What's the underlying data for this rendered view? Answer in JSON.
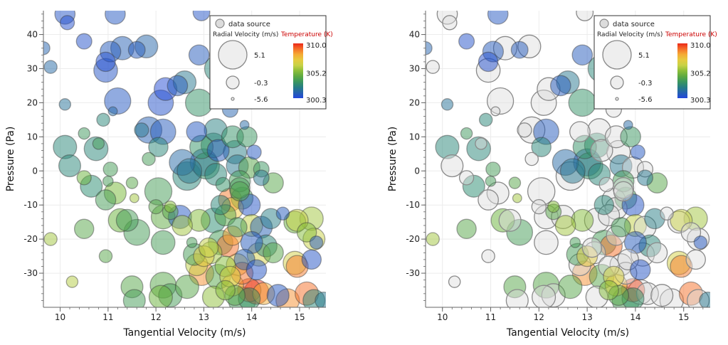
{
  "chart_data": [
    {
      "type": "scatter",
      "id": "left",
      "title": "",
      "xlabel": "Tangential Velocity (m/s)",
      "ylabel": "Pressure (Pa)",
      "xlim": [
        9.65,
        15.55
      ],
      "ylim": [
        -40,
        47
      ],
      "xticks": [
        "10",
        "11",
        "12",
        "13",
        "14",
        "15"
      ],
      "yticks": [
        "-30",
        "-20",
        "-10",
        "0",
        "10",
        "20",
        "30",
        "40"
      ],
      "grid": true,
      "legend": {
        "placement": "top-right",
        "entry": "data source",
        "size_title": "Radial Velocity (m/s)",
        "size_labels": [
          "5.1",
          "-0.3",
          "-5.6"
        ],
        "color_title": "Temperature (K)",
        "color_labels": [
          "310.0",
          "305.2",
          "300.3"
        ]
      },
      "highlight": "all",
      "points": [
        [
          10.1,
          46,
          300.8,
          0.8
        ],
        [
          10.15,
          43.5,
          300.6,
          -1.5
        ],
        [
          9.65,
          36,
          301.3,
          -2.0
        ],
        [
          9.8,
          30.5,
          301.5,
          -2.0
        ],
        [
          10.5,
          38,
          300.7,
          -1.0
        ],
        [
          11.05,
          35,
          301.0,
          1.0
        ],
        [
          11.3,
          36,
          301.2,
          2.0
        ],
        [
          11.15,
          46,
          300.9,
          0.8
        ],
        [
          10.95,
          32,
          300.6,
          0.5
        ],
        [
          10.95,
          29.5,
          300.8,
          2.2
        ],
        [
          11.6,
          35.5,
          301.0,
          -0.5
        ],
        [
          11.8,
          36.5,
          301.4,
          1.8
        ],
        [
          11.2,
          20.5,
          300.9,
          3.2
        ],
        [
          10.1,
          19.5,
          301.8,
          -2.5
        ],
        [
          10.9,
          15,
          302.5,
          -2.0
        ],
        [
          11.1,
          17.5,
          301.5,
          -3.5
        ],
        [
          12.2,
          24,
          300.5,
          1.8
        ],
        [
          12.45,
          25,
          301.0,
          0.8
        ],
        [
          12.1,
          20,
          300.7,
          2.8
        ],
        [
          12.6,
          26,
          302.0,
          1.8
        ],
        [
          12.9,
          34,
          301.0,
          0.8
        ],
        [
          12.95,
          46.5,
          300.8,
          -0.5
        ],
        [
          13.3,
          30,
          302.5,
          3.5
        ],
        [
          12.9,
          20,
          303.0,
          3.5
        ],
        [
          13.55,
          18,
          301.3,
          -1.0
        ],
        [
          13.85,
          13.5,
          301.5,
          -3.5
        ],
        [
          13.6,
          21.5,
          301.8,
          -2.0
        ],
        [
          11.85,
          12,
          301.2,
          3.2
        ],
        [
          12.15,
          11.5,
          301.0,
          2.8
        ],
        [
          12.05,
          7,
          302.5,
          0.5
        ],
        [
          11.85,
          3.5,
          303.5,
          -2.0
        ],
        [
          11.7,
          12,
          302.0,
          -1.5
        ],
        [
          10.1,
          7,
          302.5,
          2.0
        ],
        [
          10.2,
          1.5,
          302.5,
          1.5
        ],
        [
          10.5,
          11,
          303.3,
          -2.5
        ],
        [
          10.75,
          6.5,
          302.5,
          2.2
        ],
        [
          10.8,
          8,
          303.5,
          -2.5
        ],
        [
          11.05,
          0.5,
          303.5,
          -1.5
        ],
        [
          11.0,
          -3,
          303.5,
          -3.0
        ],
        [
          10.5,
          -2,
          304.5,
          -1.5
        ],
        [
          10.65,
          -4.5,
          302.7,
          1.5
        ],
        [
          10.95,
          -8.5,
          303.5,
          0.8
        ],
        [
          11.15,
          -6.5,
          304.8,
          1.5
        ],
        [
          11.5,
          -3.5,
          304.0,
          -2.5
        ],
        [
          11.55,
          -8,
          305.5,
          -3.5
        ],
        [
          12.05,
          -6,
          303.5,
          3.5
        ],
        [
          12.0,
          -10.5,
          304.0,
          -1.5
        ],
        [
          12.3,
          -10.5,
          305.0,
          -2.5
        ],
        [
          12.15,
          -13.5,
          304.2,
          2.2
        ],
        [
          12.55,
          2.5,
          301.5,
          3.0
        ],
        [
          12.7,
          0,
          302.0,
          2.5
        ],
        [
          12.65,
          -1.5,
          302.5,
          4.0
        ],
        [
          12.95,
          7,
          303.0,
          2.0
        ],
        [
          13.0,
          2.5,
          301.0,
          3.5
        ],
        [
          12.85,
          11.5,
          300.9,
          0.8
        ],
        [
          13.2,
          7.5,
          302.8,
          2.5
        ],
        [
          13.25,
          12,
          302.3,
          1.8
        ],
        [
          13.3,
          6,
          301.0,
          1.5
        ],
        [
          13.05,
          1.5,
          303.0,
          3.2
        ],
        [
          13.25,
          -1,
          302.5,
          1.5
        ],
        [
          13.6,
          10,
          303.0,
          1.5
        ],
        [
          13.65,
          5.5,
          302.2,
          2.0
        ],
        [
          13.7,
          1.5,
          302.0,
          1.5
        ],
        [
          13.95,
          1,
          304.0,
          1.2
        ],
        [
          14.05,
          5.5,
          300.9,
          -1.5
        ],
        [
          13.9,
          10,
          303.2,
          0.8
        ],
        [
          14.2,
          0.5,
          303.2,
          -1.0
        ],
        [
          14.45,
          -3.5,
          304.0,
          0.8
        ],
        [
          13.75,
          -3,
          303.5,
          1.2
        ],
        [
          13.75,
          -6,
          303.8,
          0.5
        ],
        [
          13.8,
          -8,
          303.5,
          1.5
        ],
        [
          13.55,
          -8.5,
          308.8,
          2.0
        ],
        [
          13.6,
          -11,
          307.5,
          1.5
        ],
        [
          13.95,
          -10,
          300.8,
          1.5
        ],
        [
          13.35,
          -10,
          302.5,
          0.5
        ],
        [
          13.45,
          -13,
          304.0,
          1.2
        ],
        [
          13.2,
          -14.5,
          302.7,
          2.5
        ],
        [
          12.9,
          -14.5,
          305.0,
          1.5
        ],
        [
          12.5,
          -13.5,
          300.9,
          2.0
        ],
        [
          12.55,
          -16,
          305.5,
          0.8
        ],
        [
          12.3,
          -12,
          304.0,
          -1.0
        ],
        [
          13.6,
          -19,
          308.2,
          0.5
        ],
        [
          13.7,
          -16.5,
          303.5,
          0.5
        ],
        [
          14.0,
          -16,
          306.0,
          1.5
        ],
        [
          14.2,
          -16.5,
          301.2,
          1.5
        ],
        [
          14.4,
          -14,
          302.2,
          0.8
        ],
        [
          14.65,
          -12.5,
          301.0,
          -2.0
        ],
        [
          14.9,
          -15,
          304.5,
          1.5
        ],
        [
          14.95,
          -14.5,
          306.2,
          1.5
        ],
        [
          15.25,
          -14,
          305.5,
          2.0
        ],
        [
          15.15,
          -18,
          305.0,
          0.5
        ],
        [
          15.3,
          -20,
          306.2,
          1.5
        ],
        [
          15.35,
          -21,
          300.9,
          -2.0
        ],
        [
          15.25,
          -26,
          300.8,
          0.5
        ],
        [
          14.9,
          -27,
          306.5,
          2.0
        ],
        [
          14.95,
          -28,
          308.8,
          1.5
        ],
        [
          14.45,
          -24,
          304.0,
          0.8
        ],
        [
          14.3,
          -22,
          302.5,
          1.5
        ],
        [
          14.0,
          -21,
          301.0,
          1.5
        ],
        [
          14.15,
          -24.5,
          306.5,
          2.0
        ],
        [
          14.1,
          -29,
          300.8,
          0.8
        ],
        [
          13.85,
          -26,
          301.2,
          1.0
        ],
        [
          13.7,
          -27.5,
          307.5,
          1.5
        ],
        [
          13.5,
          -22,
          309.0,
          1.5
        ],
        [
          13.35,
          -21,
          303.5,
          2.5
        ],
        [
          13.15,
          -24,
          305.5,
          1.5
        ],
        [
          13.1,
          -22.5,
          306.0,
          0.5
        ],
        [
          13.0,
          -25,
          307.0,
          1.0
        ],
        [
          12.85,
          -27.5,
          306.0,
          1.5
        ],
        [
          12.95,
          -30,
          308.5,
          2.5
        ],
        [
          13.3,
          -31,
          304.0,
          2.5
        ],
        [
          13.45,
          -28,
          305.0,
          1.0
        ],
        [
          13.55,
          -31,
          306.5,
          1.0
        ],
        [
          13.6,
          -33.5,
          307.5,
          1.5
        ],
        [
          13.8,
          -30,
          309.0,
          1.5
        ],
        [
          13.95,
          -35,
          309.5,
          2.0
        ],
        [
          14.1,
          -35.5,
          309.8,
          2.5
        ],
        [
          14.25,
          -36,
          308.0,
          1.5
        ],
        [
          13.65,
          -36.5,
          304.0,
          0.8
        ],
        [
          13.45,
          -35,
          305.0,
          0.5
        ],
        [
          14.55,
          -36.5,
          300.9,
          1.5
        ],
        [
          14.75,
          -38,
          308.5,
          2.0
        ],
        [
          15.15,
          -36,
          309.0,
          2.0
        ],
        [
          15.3,
          -38,
          302.5,
          1.5
        ],
        [
          15.5,
          -38,
          302.0,
          -0.5
        ],
        [
          13.8,
          -38,
          303.5,
          3.5
        ],
        [
          12.3,
          -36.5,
          303.5,
          2.0
        ],
        [
          12.65,
          -34,
          304.0,
          2.0
        ],
        [
          12.15,
          -33.5,
          304.0,
          3.0
        ],
        [
          12.1,
          -37,
          304.5,
          2.0
        ],
        [
          11.5,
          -34,
          304.0,
          1.5
        ],
        [
          11.55,
          -38,
          303.5,
          1.5
        ],
        [
          13.2,
          -37,
          305.2,
          1.5
        ],
        [
          13.95,
          -37.5,
          303.0,
          1.5
        ],
        [
          9.8,
          -20,
          305.5,
          -2.0
        ],
        [
          10.25,
          -32.5,
          305.8,
          -2.5
        ],
        [
          10.95,
          -25,
          304.0,
          -2.0
        ],
        [
          10.5,
          -17,
          304.0,
          0.5
        ],
        [
          11.4,
          -14.5,
          303.5,
          1.5
        ],
        [
          11.6,
          -18,
          303.5,
          3.0
        ],
        [
          11.25,
          -14.5,
          304.5,
          2.0
        ],
        [
          12.15,
          -21,
          303.5,
          2.2
        ],
        [
          12.8,
          -24.5,
          303.5,
          1.5
        ],
        [
          12.75,
          -21,
          303.5,
          -3.0
        ],
        [
          13.75,
          -5,
          303.5,
          1.0
        ],
        [
          14.2,
          -2,
          302.0,
          -1.0
        ],
        [
          13.4,
          -4,
          303.0,
          -1.5
        ]
      ]
    },
    {
      "type": "scatter",
      "id": "right",
      "title": "",
      "xlabel": "Tangential Velocity (m/s)",
      "ylabel": "Pressure (Pa)",
      "xlim": [
        9.65,
        15.55
      ],
      "ylim": [
        -40,
        47
      ],
      "xticks": [
        "10",
        "11",
        "12",
        "13",
        "14",
        "15"
      ],
      "yticks": [
        "-30",
        "-20",
        "-10",
        "0",
        "10",
        "20",
        "30",
        "40"
      ],
      "grid": true,
      "legend": {
        "placement": "top-right",
        "entry": "data source",
        "size_title": "Radial Velocity (m/s)",
        "size_labels": [
          "5.1",
          "-0.3",
          "-5.6"
        ],
        "color_title": "Temperature (K)",
        "color_labels": [
          "310.0",
          "305.2",
          "300.3"
        ]
      },
      "highlight": "subset",
      "note": "same points as left chart; non-highlighted points drawn gray"
    }
  ],
  "colors": {
    "gray_fill": "#dcdcdc",
    "gray_stroke": "#8a8a8a",
    "axis": "#666666",
    "grid": "#ececec"
  }
}
